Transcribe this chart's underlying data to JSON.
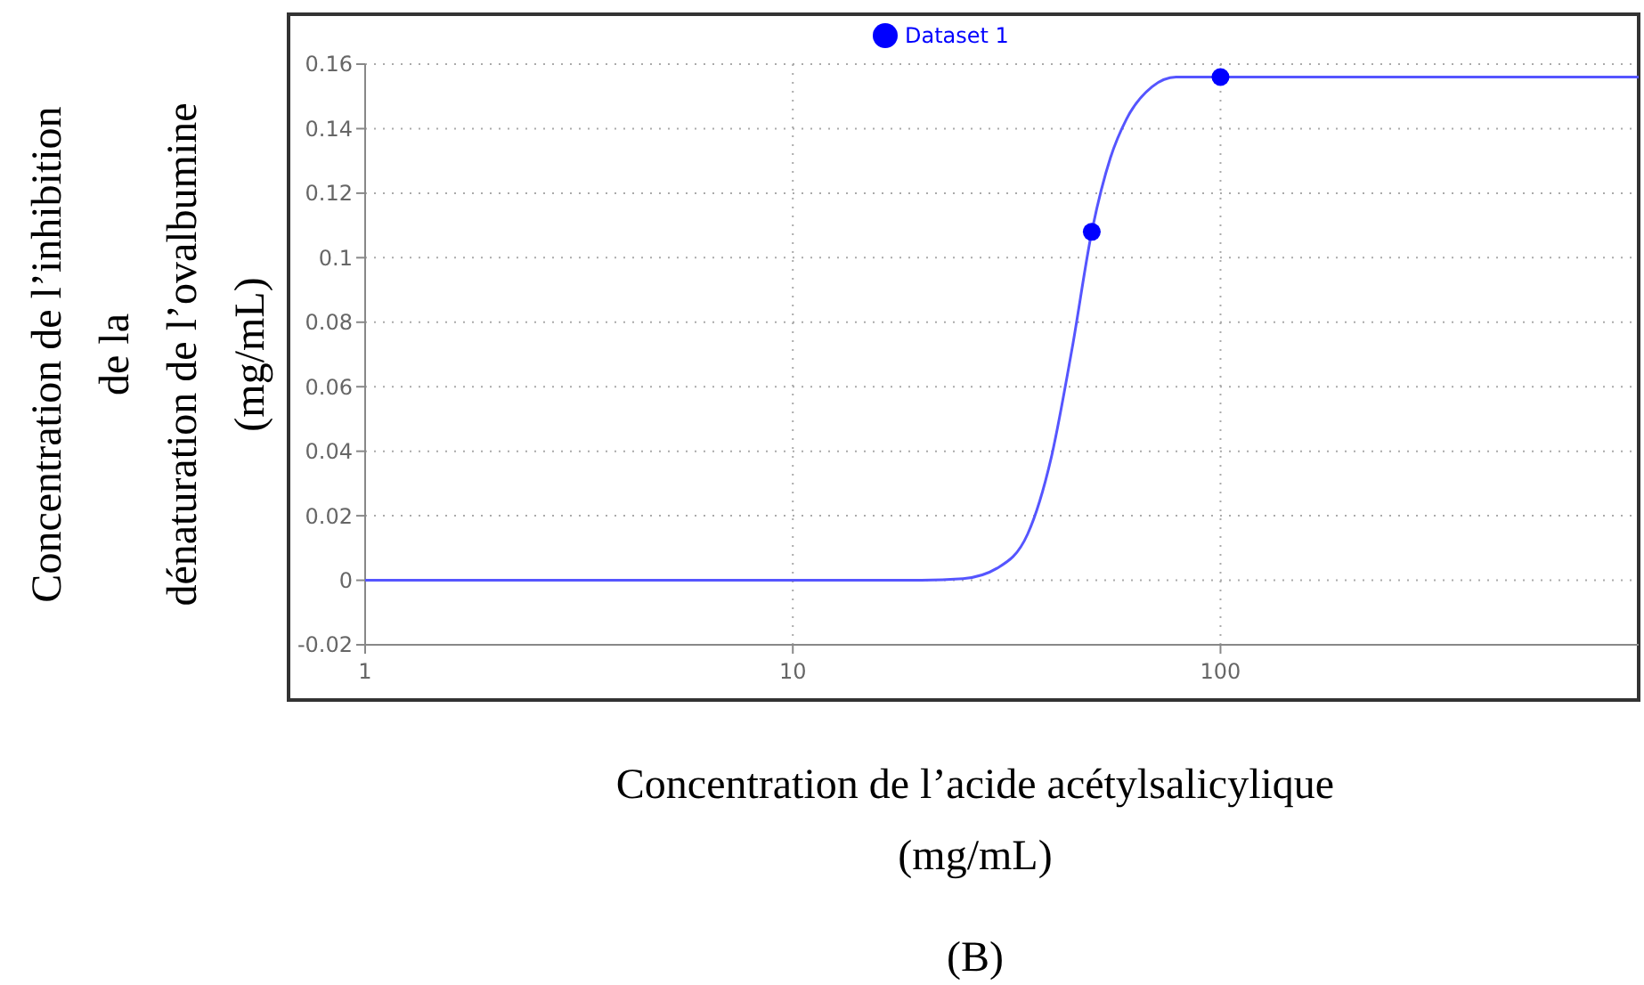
{
  "chart_data": {
    "type": "line",
    "xlabel": "Concentration de l’acide acétylsalicylique\n(mg/mL)",
    "ylabel": "Concentration de l’inhibition\nde la\ndénaturation de l’ovalbumine\n(mg/mL)",
    "annotations": [
      "(B)"
    ],
    "log": "x",
    "xlim": [
      1,
      950
    ],
    "xticks": [
      1,
      10,
      100
    ],
    "ylim": [
      -0.02,
      0.16
    ],
    "yticks": [
      -0.02,
      0,
      0.02,
      0.04,
      0.06,
      0.08,
      0.1,
      0.12,
      0.14,
      0.16
    ],
    "grid": true,
    "legend": "top",
    "series": [
      {
        "color": "#5555ff",
        "marker": "none",
        "x": [
          1,
          10,
          20,
          25,
          30,
          35.4,
          40.2,
          45,
          50,
          55.3,
          60.3,
          69.2,
          78.7,
          100,
          950
        ],
        "values": [
          0,
          0,
          0,
          0.0005,
          0.0037,
          0.0143,
          0.038,
          0.072,
          0.108,
          0.131,
          0.143,
          0.153,
          0.156,
          0.156,
          0.156
        ]
      },
      {
        "type": "scatter",
        "name": "Dataset 1",
        "color": "#0000ff",
        "marker": "circle",
        "x": [
          50,
          100
        ],
        "values": [
          0.108,
          0.156
        ]
      }
    ]
  }
}
